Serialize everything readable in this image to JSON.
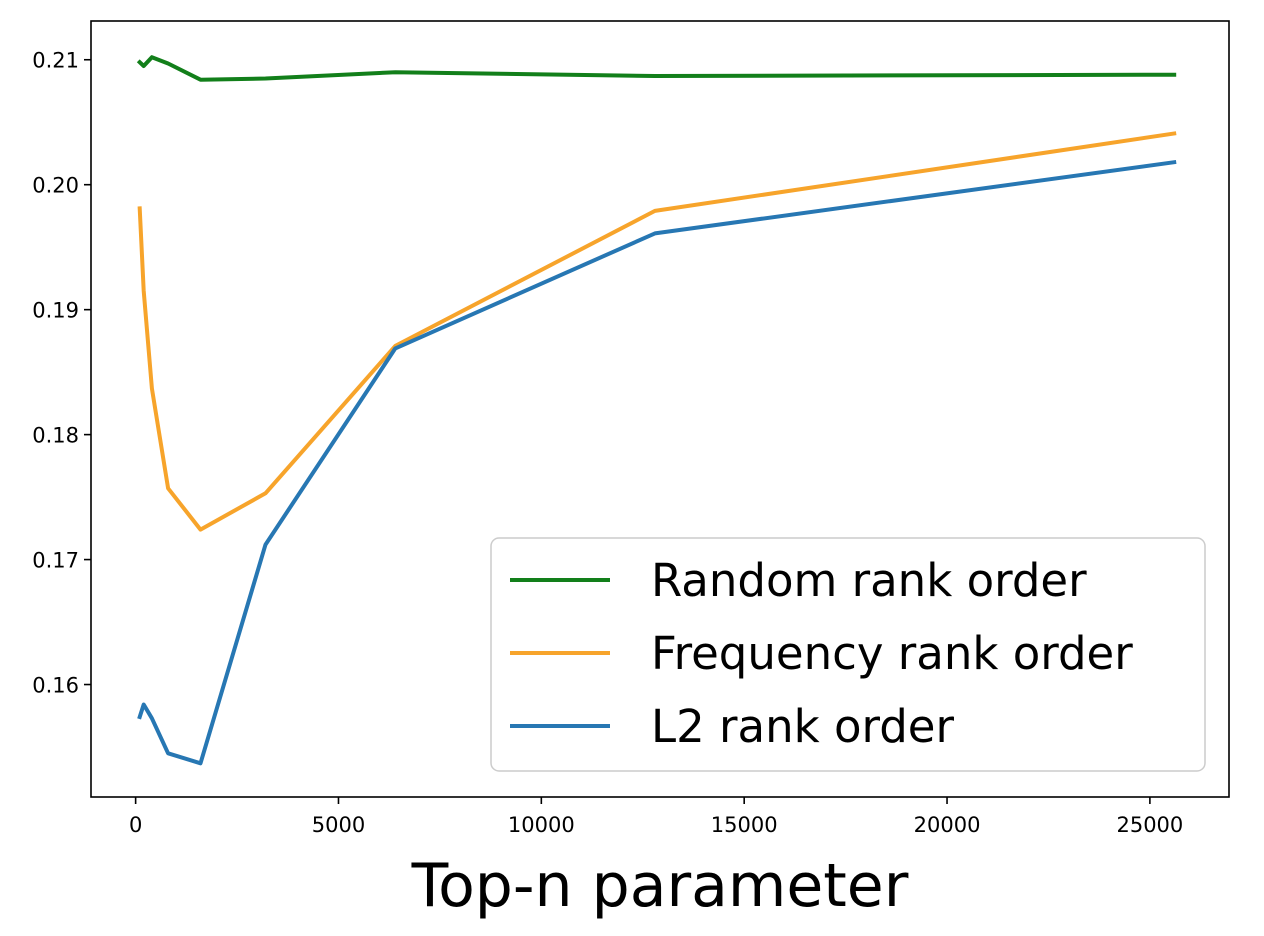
{
  "chart_data": {
    "type": "line",
    "title": "",
    "xlabel": "Top-n parameter",
    "ylabel": "",
    "xlim": [
      -1100,
      26950
    ],
    "ylim": [
      0.151,
      0.2131
    ],
    "xticks": [
      0,
      5000,
      10000,
      15000,
      20000,
      25000
    ],
    "xtick_labels": [
      "0",
      "5000",
      "10000",
      "15000",
      "20000",
      "25000"
    ],
    "yticks": [
      0.16,
      0.17,
      0.18,
      0.19,
      0.2,
      0.21
    ],
    "ytick_labels": [
      "0.16",
      "0.17",
      "0.18",
      "0.19",
      "0.20",
      "0.21"
    ],
    "grid": false,
    "legend_position": "lower-right",
    "series": [
      {
        "name": "Random rank order",
        "color": "#127f1a",
        "x": [
          100,
          200,
          400,
          800,
          1600,
          3200,
          6400,
          12800,
          25600
        ],
        "y": [
          0.2098,
          0.2095,
          0.2102,
          0.2097,
          0.2084,
          0.2085,
          0.209,
          0.2087,
          0.2088
        ]
      },
      {
        "name": "Frequency rank order",
        "color": "#f7a42b",
        "x": [
          100,
          200,
          400,
          800,
          1600,
          3200,
          6400,
          12800,
          25600
        ],
        "y": [
          0.1981,
          0.1915,
          0.1837,
          0.1757,
          0.1724,
          0.1753,
          0.1871,
          0.1979,
          0.2041
        ]
      },
      {
        "name": "L2 rank order",
        "color": "#2777b3",
        "x": [
          100,
          200,
          400,
          800,
          1600,
          3200,
          6400,
          12800,
          25600
        ],
        "y": [
          0.1574,
          0.1584,
          0.1573,
          0.1545,
          0.1537,
          0.1712,
          0.1869,
          0.1961,
          0.2018
        ]
      }
    ]
  }
}
